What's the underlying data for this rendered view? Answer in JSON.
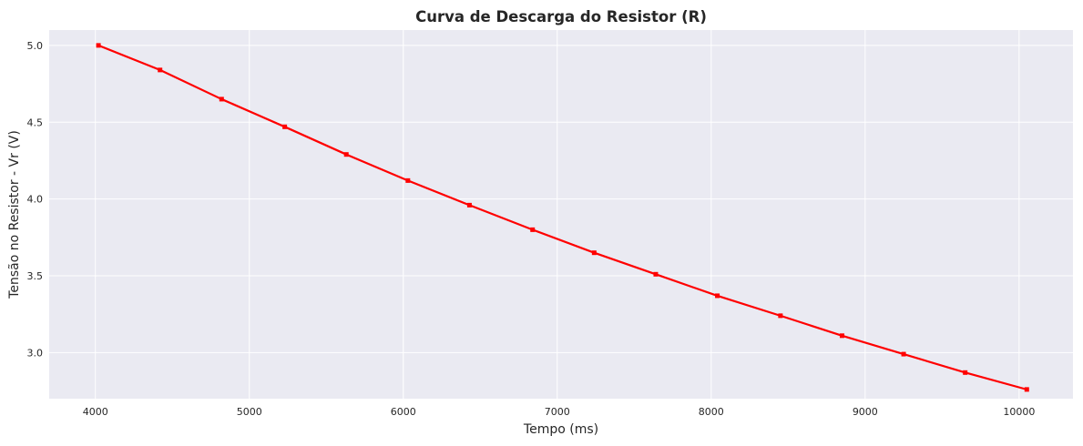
{
  "chart_data": {
    "type": "line",
    "title": "Curva de Descarga do Resistor (R)",
    "xlabel": "Tempo (ms)",
    "ylabel": "Tensão no Resistor - Vr (V)",
    "xlim": [
      3700,
      10350
    ],
    "ylim": [
      2.7,
      5.1
    ],
    "xticks": [
      4000,
      5000,
      6000,
      7000,
      8000,
      9000,
      10000
    ],
    "yticks": [
      3.0,
      3.5,
      4.0,
      4.5,
      5.0
    ],
    "xtick_labels": [
      "4000",
      "5000",
      "6000",
      "7000",
      "8000",
      "9000",
      "10000"
    ],
    "ytick_labels": [
      "3.0",
      "3.5",
      "4.0",
      "4.5",
      "5.0"
    ],
    "grid": true,
    "background": "#eaeaf2",
    "series": [
      {
        "color": "#ff0000",
        "marker": "square",
        "x": [
          4020,
          4420,
          4820,
          5230,
          5630,
          6030,
          6430,
          6840,
          7240,
          7640,
          8040,
          8450,
          8850,
          9250,
          9650,
          10050
        ],
        "y": [
          5.0,
          4.84,
          4.65,
          4.47,
          4.29,
          4.12,
          3.96,
          3.8,
          3.65,
          3.51,
          3.37,
          3.24,
          3.11,
          2.99,
          2.87,
          2.76
        ]
      }
    ]
  }
}
